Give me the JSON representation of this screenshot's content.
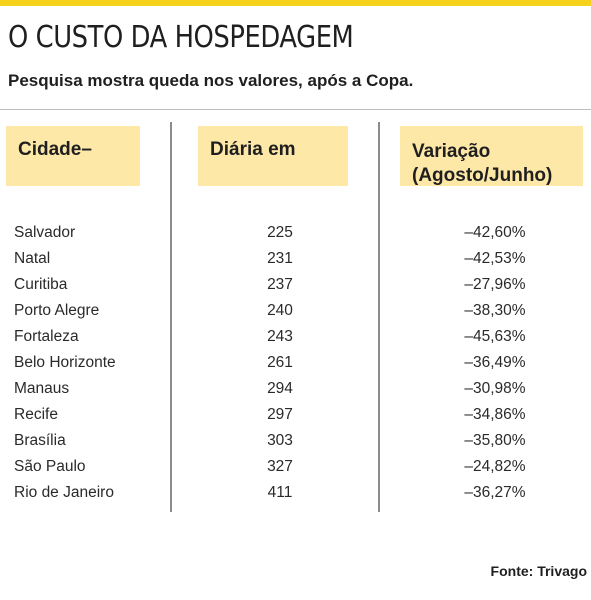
{
  "title": "O CUSTO DA HOSPEDAGEM",
  "subtitle": "Pesquisa mostra queda nos valores, após a Copa.",
  "table": {
    "headers": {
      "city": "Cidade–",
      "price": "Diária em",
      "variation_line1": "Variação",
      "variation_line2": "(Agosto/Junho)"
    },
    "rows": [
      {
        "city": "Salvador",
        "price": "225",
        "variation": "–42,60%"
      },
      {
        "city": "Natal",
        "price": "231",
        "variation": "–42,53%"
      },
      {
        "city": "Curitiba",
        "price": "237",
        "variation": "–27,96%"
      },
      {
        "city": "Porto Alegre",
        "price": "240",
        "variation": "–38,30%"
      },
      {
        "city": "Fortaleza",
        "price": "243",
        "variation": "–45,63%"
      },
      {
        "city": "Belo Horizonte",
        "price": "261",
        "variation": "–36,49%"
      },
      {
        "city": "Manaus",
        "price": "294",
        "variation": "–30,98%"
      },
      {
        "city": "Recife",
        "price": "297",
        "variation": "–34,86%"
      },
      {
        "city": "Brasília",
        "price": "303",
        "variation": "–35,80%"
      },
      {
        "city": "São Paulo",
        "price": "327",
        "variation": "–24,82%"
      },
      {
        "city": "Rio de Janeiro",
        "price": "411",
        "variation": "–36,27%"
      }
    ]
  },
  "source": "Fonte: Trivago",
  "colors": {
    "accent_bar": "#f6d21a",
    "header_fill": "#fde8a8"
  }
}
